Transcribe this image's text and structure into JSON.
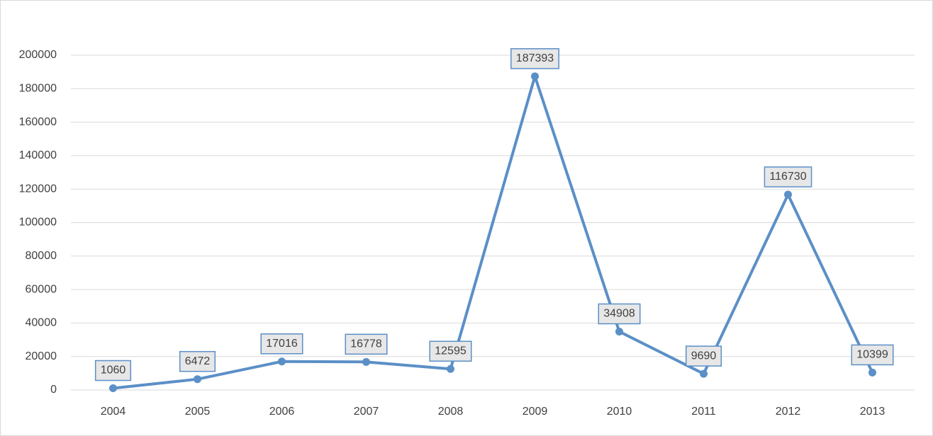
{
  "chart_data": {
    "type": "line",
    "categories": [
      "2004",
      "2005",
      "2006",
      "2007",
      "2008",
      "2009",
      "2010",
      "2011",
      "2012",
      "2013"
    ],
    "values": [
      1060,
      6472,
      17016,
      16778,
      12595,
      187393,
      34908,
      9690,
      116730,
      10399
    ],
    "color": "#5b8fc7",
    "ylim": [
      0,
      200000
    ],
    "yticks": [
      0,
      20000,
      40000,
      60000,
      80000,
      100000,
      120000,
      140000,
      160000,
      180000,
      200000
    ],
    "grid": true
  }
}
